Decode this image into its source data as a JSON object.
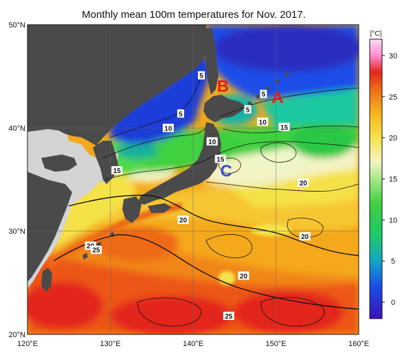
{
  "title": "Monthly mean 100m temperatures for Nov. 2017.",
  "axes": {
    "lat_labels": [
      "50°N",
      "40°N",
      "30°N",
      "20°N"
    ],
    "lat_values": [
      50,
      40,
      30,
      20
    ],
    "lon_labels": [
      "120°E",
      "130°E",
      "140°E",
      "150°E",
      "160°E"
    ],
    "lon_values": [
      120,
      130,
      140,
      150,
      160
    ],
    "lat_range": [
      20,
      50
    ],
    "lon_range": [
      120,
      160
    ]
  },
  "colorbar": {
    "unit": "[°C]",
    "ticks": [
      "30",
      "25",
      "20",
      "15",
      "10",
      "5",
      "0"
    ],
    "tick_values": [
      30,
      25,
      20,
      15,
      10,
      5,
      0
    ],
    "range": [
      -2,
      32
    ],
    "stops": [
      {
        "v": -2,
        "c": "#3a12b8"
      },
      {
        "v": 2,
        "c": "#1a4ee8"
      },
      {
        "v": 5,
        "c": "#13a6c8"
      },
      {
        "v": 8,
        "c": "#1ec86a"
      },
      {
        "v": 12,
        "c": "#40d040"
      },
      {
        "v": 15,
        "c": "#a8e88a"
      },
      {
        "v": 17,
        "c": "#f3f3c4"
      },
      {
        "v": 20,
        "c": "#f5e24a"
      },
      {
        "v": 23,
        "c": "#f7b21c"
      },
      {
        "v": 26,
        "c": "#ee6a18"
      },
      {
        "v": 28,
        "c": "#e3261c"
      },
      {
        "v": 30,
        "c": "#ff8cd2"
      },
      {
        "v": 32,
        "c": "#fcdcf2"
      }
    ]
  },
  "colors": {
    "land": "#4a4a4a",
    "land_far": "#d4d4d4",
    "grid": "#666666"
  },
  "contour_labels": [
    {
      "text": "5",
      "lon": 141.0,
      "lat": 45.1
    },
    {
      "text": "5",
      "lon": 138.5,
      "lat": 41.4
    },
    {
      "text": "10",
      "lon": 137.0,
      "lat": 40.0
    },
    {
      "text": "10",
      "lon": 142.3,
      "lat": 38.7
    },
    {
      "text": "5",
      "lon": 146.6,
      "lat": 41.8
    },
    {
      "text": "5",
      "lon": 148.5,
      "lat": 43.3
    },
    {
      "text": "10",
      "lon": 148.4,
      "lat": 40.6
    },
    {
      "text": "15",
      "lon": 151.0,
      "lat": 40.1
    },
    {
      "text": "15",
      "lon": 143.3,
      "lat": 37.0
    },
    {
      "text": "15",
      "lon": 130.8,
      "lat": 35.9
    },
    {
      "text": "20",
      "lon": 153.3,
      "lat": 34.7
    },
    {
      "text": "20",
      "lon": 138.8,
      "lat": 31.1
    },
    {
      "text": "20",
      "lon": 127.6,
      "lat": 28.6
    },
    {
      "text": "25",
      "lon": 128.3,
      "lat": 28.2
    },
    {
      "text": "20",
      "lon": 153.5,
      "lat": 29.5
    },
    {
      "text": "20",
      "lon": 146.1,
      "lat": 25.7
    },
    {
      "text": "25",
      "lon": 144.3,
      "lat": 21.8
    }
  ],
  "annotations": [
    {
      "text": "A",
      "lon": 150.2,
      "lat": 43.0,
      "color": "#e0201c"
    },
    {
      "text": "B",
      "lon": 143.6,
      "lat": 44.1,
      "color": "#e0201c"
    },
    {
      "text": "C",
      "lon": 144.0,
      "lat": 35.9,
      "color": "#3c4adc"
    }
  ]
}
